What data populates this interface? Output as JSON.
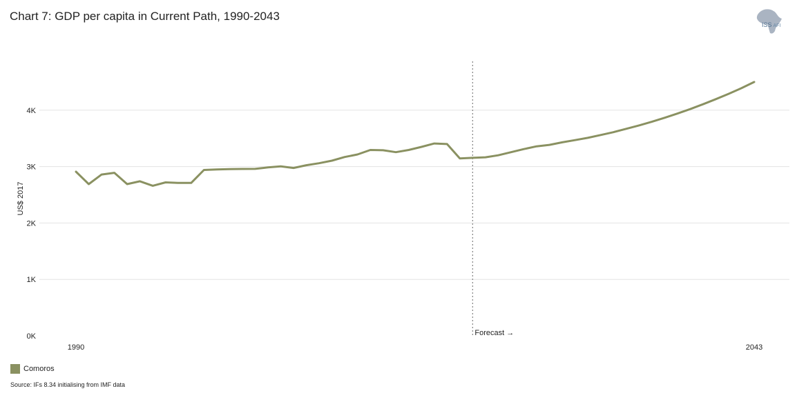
{
  "header": {
    "title": "Chart 7: GDP per capita in Current Path, 1990-2043",
    "logo_text": "ISS",
    "logo_subtext": "AFI"
  },
  "legend": {
    "label": "Comoros"
  },
  "source": "Source: IFs 8.34 initialising from IMF data",
  "colors": {
    "series": "#8a9161",
    "grid": "#e3e3e3",
    "forecast_line": "#888888",
    "logo": "#aab4c2"
  },
  "chart_data": {
    "type": "line",
    "title": "Chart 7: GDP per capita in Current Path, 1990-2043",
    "xlabel": "",
    "ylabel": "US$ 2017",
    "ylim": [
      0,
      5000
    ],
    "yticks": [
      {
        "value": 0,
        "label": "0K"
      },
      {
        "value": 1000,
        "label": "1K"
      },
      {
        "value": 2000,
        "label": "2K"
      },
      {
        "value": 3000,
        "label": "3K"
      },
      {
        "value": 4000,
        "label": "4K"
      }
    ],
    "xlim": [
      1990,
      2043
    ],
    "xticks": [
      {
        "value": 1990,
        "label": "1990"
      },
      {
        "value": 2043,
        "label": "2043"
      }
    ],
    "grid": true,
    "legend_position": "bottom-left",
    "forecast": {
      "year": 2021,
      "label": "Forecast →"
    },
    "series": [
      {
        "name": "Comoros",
        "color": "#8a9161",
        "x": [
          1990,
          1991,
          1992,
          1993,
          1994,
          1995,
          1996,
          1997,
          1998,
          1999,
          2000,
          2001,
          2002,
          2003,
          2004,
          2005,
          2006,
          2007,
          2008,
          2009,
          2010,
          2011,
          2012,
          2013,
          2014,
          2015,
          2016,
          2017,
          2018,
          2019,
          2020,
          2021,
          2022,
          2023,
          2024,
          2025,
          2026,
          2027,
          2028,
          2029,
          2030,
          2031,
          2032,
          2033,
          2034,
          2035,
          2036,
          2037,
          2038,
          2039,
          2040,
          2041,
          2042,
          2043
        ],
        "values": [
          2910,
          2690,
          2860,
          2890,
          2690,
          2740,
          2660,
          2720,
          2710,
          2710,
          2940,
          2950,
          2955,
          2958,
          2960,
          2985,
          3005,
          2975,
          3025,
          3060,
          3105,
          3170,
          3215,
          3295,
          3290,
          3255,
          3295,
          3350,
          3410,
          3400,
          3145,
          3155,
          3165,
          3200,
          3255,
          3310,
          3360,
          3385,
          3430,
          3470,
          3510,
          3560,
          3610,
          3670,
          3730,
          3795,
          3865,
          3940,
          4020,
          4105,
          4195,
          4290,
          4390,
          4500
        ]
      }
    ]
  }
}
